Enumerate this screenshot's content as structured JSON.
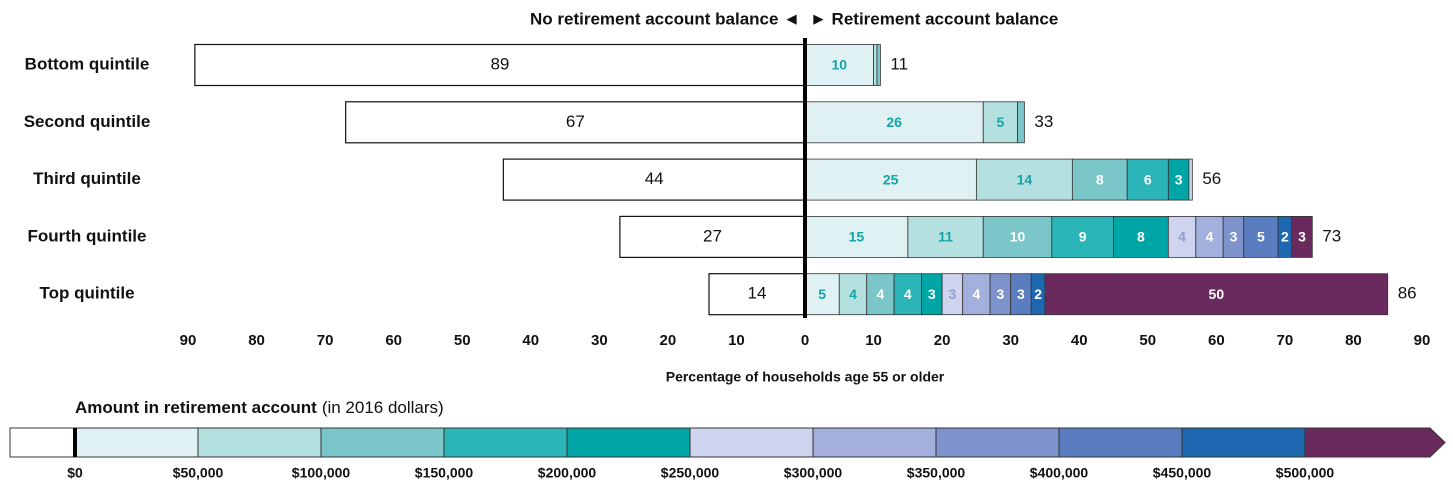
{
  "chart_data": {
    "type": "diverging-stacked-bar",
    "left_header": "No retirement account balance ◄",
    "right_header": "► Retirement account balance",
    "x_label": "Percentage of households age 55 or older",
    "categories": [
      "Bottom quintile",
      "Second quintile",
      "Third quintile",
      "Fourth quintile",
      "Top quintile"
    ],
    "no_balance": [
      89,
      67,
      44,
      27,
      14
    ],
    "totals": [
      11,
      33,
      56,
      73,
      86
    ],
    "segments": [
      [
        10,
        0.5,
        0.5
      ],
      [
        26,
        5,
        1
      ],
      [
        25,
        14,
        8,
        6,
        3,
        0.5
      ],
      [
        15,
        11,
        10,
        9,
        8,
        4,
        4,
        3,
        5,
        2,
        3
      ],
      [
        5,
        4,
        4,
        4,
        3,
        3,
        4,
        3,
        3,
        2,
        50
      ]
    ],
    "segment_labels": [
      [
        "10",
        null,
        null
      ],
      [
        "26",
        "5",
        null
      ],
      [
        "25",
        "14",
        "8",
        "6",
        "3",
        null
      ],
      [
        "15",
        "11",
        "10",
        "9",
        "8",
        "4",
        "4",
        "3",
        "5",
        "2",
        "3"
      ],
      [
        "5",
        "4",
        "4",
        "4",
        "3",
        "3",
        "4",
        "3",
        "3",
        "2",
        "50"
      ]
    ],
    "xlim": [
      -90,
      90
    ],
    "xticks": [
      {
        "value": -90,
        "label": "90"
      },
      {
        "value": -80,
        "label": "80"
      },
      {
        "value": -70,
        "label": "70"
      },
      {
        "value": -60,
        "label": "60"
      },
      {
        "value": -50,
        "label": "50"
      },
      {
        "value": -40,
        "label": "40"
      },
      {
        "value": -30,
        "label": "30"
      },
      {
        "value": -20,
        "label": "20"
      },
      {
        "value": -10,
        "label": "10"
      },
      0,
      10,
      20,
      30,
      40,
      50,
      60,
      70,
      80,
      90
    ],
    "legend": {
      "title": "Amount in retirement account",
      "subtitle": "(in 2016 dollars)",
      "labels": [
        "$0",
        "$50,000",
        "$100,000",
        "$150,000",
        "$200,000",
        "$250,000",
        "$300,000",
        "$350,000",
        "$400,000",
        "$450,000",
        "$500,000"
      ],
      "colors": [
        "#dff1f3",
        "#b4e0e0",
        "#7bc6c8",
        "#2bb5b8",
        "#00a6a6",
        "#cfd4ee",
        "#a3afdc",
        "#7e93cc",
        "#5a7dc0",
        "#1e68b2",
        "#6b2a5e"
      ],
      "label_colors": [
        "#14a3a6",
        "#14a3a6",
        "#ffffff",
        "#ffffff",
        "#ffffff",
        "#8f9ccf",
        "#ffffff",
        "#ffffff",
        "#ffffff",
        "#ffffff",
        "#ffffff"
      ]
    }
  }
}
